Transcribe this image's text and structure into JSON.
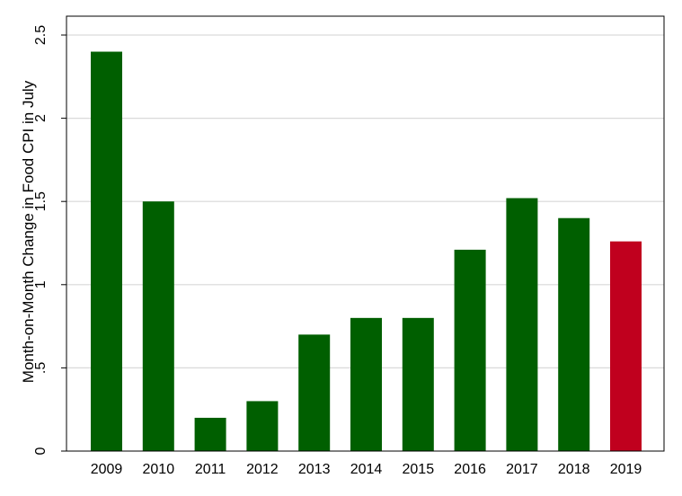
{
  "chart_data": {
    "type": "bar",
    "title": "",
    "xlabel": "",
    "ylabel": "Month-on-Month Change in Food CPI in July",
    "categories": [
      "2009",
      "2010",
      "2011",
      "2012",
      "2013",
      "2014",
      "2015",
      "2016",
      "2017",
      "2018",
      "2019"
    ],
    "values": [
      2.4,
      1.5,
      0.2,
      0.3,
      0.7,
      0.8,
      0.8,
      1.21,
      1.52,
      1.4,
      1.26
    ],
    "bar_colors": [
      "#005f00",
      "#005f00",
      "#005f00",
      "#005f00",
      "#005f00",
      "#005f00",
      "#005f00",
      "#005f00",
      "#005f00",
      "#005f00",
      "#c0001e"
    ],
    "ylim": [
      0,
      2.5
    ],
    "yticks": [
      0,
      0.5,
      1,
      1.5,
      2,
      2.5
    ],
    "ytick_labels": [
      "0",
      ".5",
      "1",
      "1.5",
      "2",
      "2.5"
    ],
    "grid": true,
    "legend": "none"
  }
}
